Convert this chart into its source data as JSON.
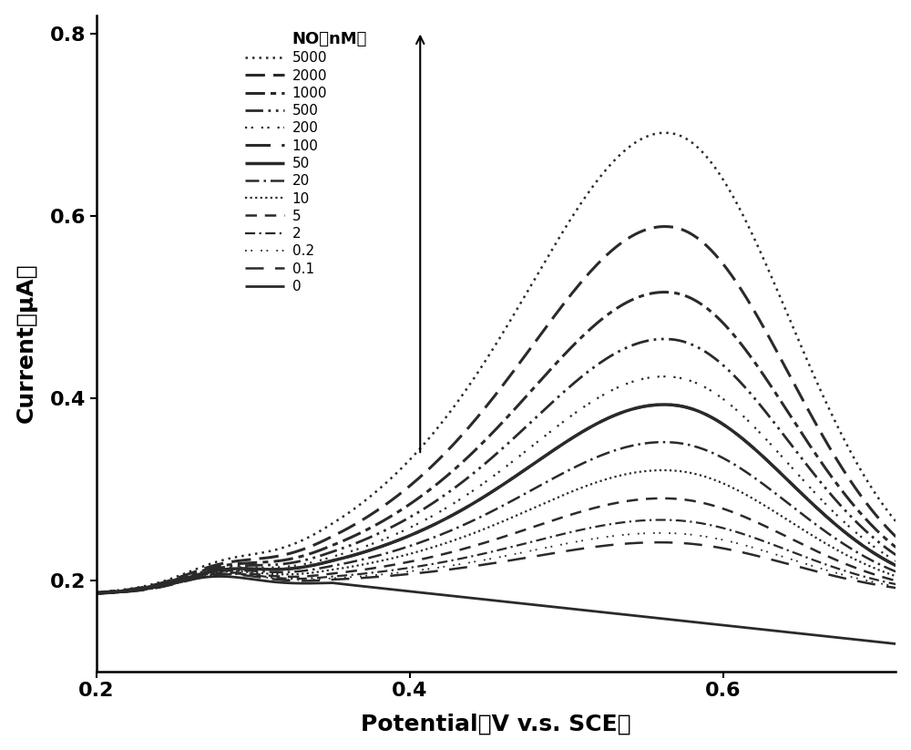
{
  "xlabel": "Potential（V v.s. SCE）",
  "ylabel": "Current（μA）",
  "xlim": [
    0.2,
    0.71
  ],
  "ylim": [
    0.1,
    0.82
  ],
  "xticks": [
    0.2,
    0.4,
    0.6
  ],
  "yticks": [
    0.2,
    0.4,
    0.6,
    0.8
  ],
  "background_color": "#ffffff",
  "series_styles": [
    {
      "label": "5000",
      "peak": 0.685,
      "ls_type": "dotted_fine",
      "lw": 1.8
    },
    {
      "label": "2000",
      "peak": 0.585,
      "ls_type": "dashed_long",
      "lw": 2.2
    },
    {
      "label": "1000",
      "peak": 0.515,
      "ls_type": "dashdotdot",
      "lw": 2.2
    },
    {
      "label": "500",
      "peak": 0.465,
      "ls_type": "dashdotdotdot",
      "lw": 2.0
    },
    {
      "label": "200",
      "peak": 0.425,
      "ls_type": "dotdot",
      "lw": 1.6
    },
    {
      "label": "100",
      "peak": 0.395,
      "ls_type": "dashed_med",
      "lw": 2.2
    },
    {
      "label": "50",
      "peak": 0.395,
      "ls_type": "solid_thick",
      "lw": 2.5
    },
    {
      "label": "20",
      "peak": 0.355,
      "ls_type": "dashdot_med",
      "lw": 1.8
    },
    {
      "label": "10",
      "peak": 0.325,
      "ls_type": "dotted_med",
      "lw": 1.6
    },
    {
      "label": "5",
      "peak": 0.295,
      "ls_type": "dashed_short",
      "lw": 1.8
    },
    {
      "label": "2",
      "peak": 0.272,
      "ls_type": "dashdot_short",
      "lw": 1.6
    },
    {
      "label": "0.2",
      "peak": 0.258,
      "ls_type": "dotdot_fine",
      "lw": 1.3
    },
    {
      "label": "0.1",
      "peak": 0.248,
      "ls_type": "dashed_sparse",
      "lw": 1.8
    },
    {
      "label": "0",
      "peak": 0.0,
      "ls_type": "solid_base",
      "lw": 2.0
    }
  ]
}
